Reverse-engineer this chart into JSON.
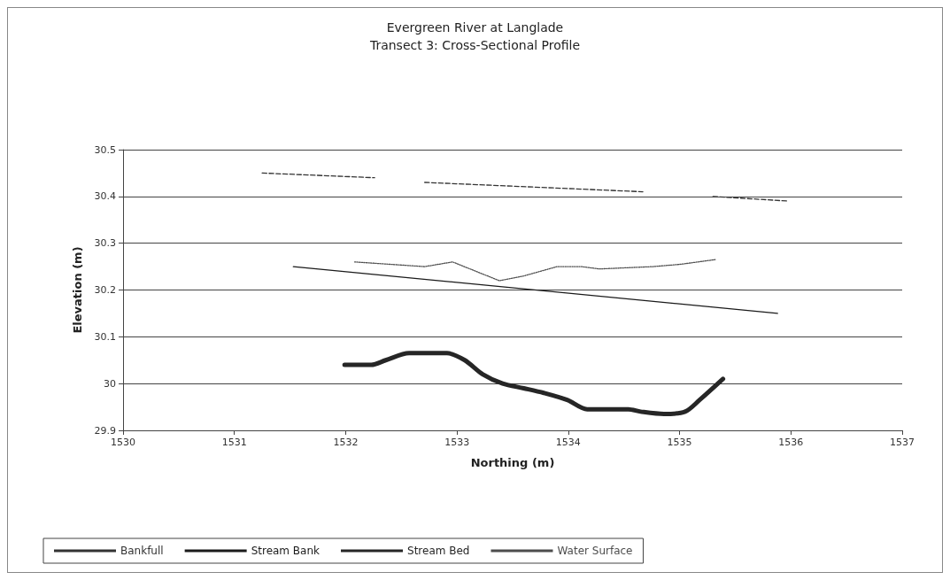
{
  "chart_data": {
    "type": "line",
    "title": "Evergreen River at Langlade",
    "subtitle": "Transect 3: Cross-Sectional Profile",
    "xlabel": "Northing (m)",
    "ylabel": "Elevation (m)",
    "xlim": [
      1530,
      1537
    ],
    "xticks": [
      1530,
      1531,
      1532,
      1533,
      1534,
      1535,
      1536,
      1537
    ],
    "ylim": [
      29.9,
      30.5
    ],
    "yticks": [
      29.9,
      30,
      30.1,
      30.2,
      30.3,
      30.4,
      30.5
    ],
    "grid": "y",
    "legend": "bottom",
    "marker": "none",
    "series": [
      {
        "name": "Bankfull",
        "color": "#333333",
        "line_style": "dashed",
        "x": [
          1531.25,
          1532.26,
          1532.5,
          1532.71,
          1534.67,
          1535.0,
          1535.3,
          1535.98
        ],
        "values": [
          30.45,
          30.44,
          null,
          30.43,
          30.41,
          null,
          30.4,
          30.39
        ]
      },
      {
        "name": "Stream Bank",
        "color": "#1a1a1a",
        "line_style": "solid",
        "x": [
          1531.53,
          1535.88
        ],
        "values": [
          30.25,
          30.15
        ]
      },
      {
        "name": "Stream Bed",
        "color": "#262626",
        "line_style": "solid",
        "x": [
          1531.99,
          1532.23,
          1532.36,
          1532.57,
          1532.91,
          1533.07,
          1533.23,
          1533.41,
          1533.6,
          1533.78,
          1533.99,
          1534.17,
          1534.54,
          1534.65,
          1534.86,
          1535.05,
          1535.18,
          1535.39
        ],
        "values": [
          30.04,
          30.04,
          30.05,
          30.065,
          30.065,
          30.05,
          30.02,
          30.0,
          29.99,
          29.98,
          29.965,
          29.945,
          29.945,
          29.94,
          29.935,
          29.94,
          29.965,
          30.01
        ]
      },
      {
        "name": "Water Surface",
        "color": "#4d4d4d",
        "line_style": "dotted",
        "x": [
          1532.08,
          1532.71,
          1532.96,
          1533.38,
          1533.6,
          1533.9,
          1534.12,
          1534.28,
          1534.76,
          1535.01,
          1535.32
        ],
        "values": [
          30.26,
          30.25,
          30.26,
          30.22,
          30.23,
          30.25,
          30.25,
          30.245,
          30.25,
          30.255,
          30.265
        ]
      }
    ]
  }
}
